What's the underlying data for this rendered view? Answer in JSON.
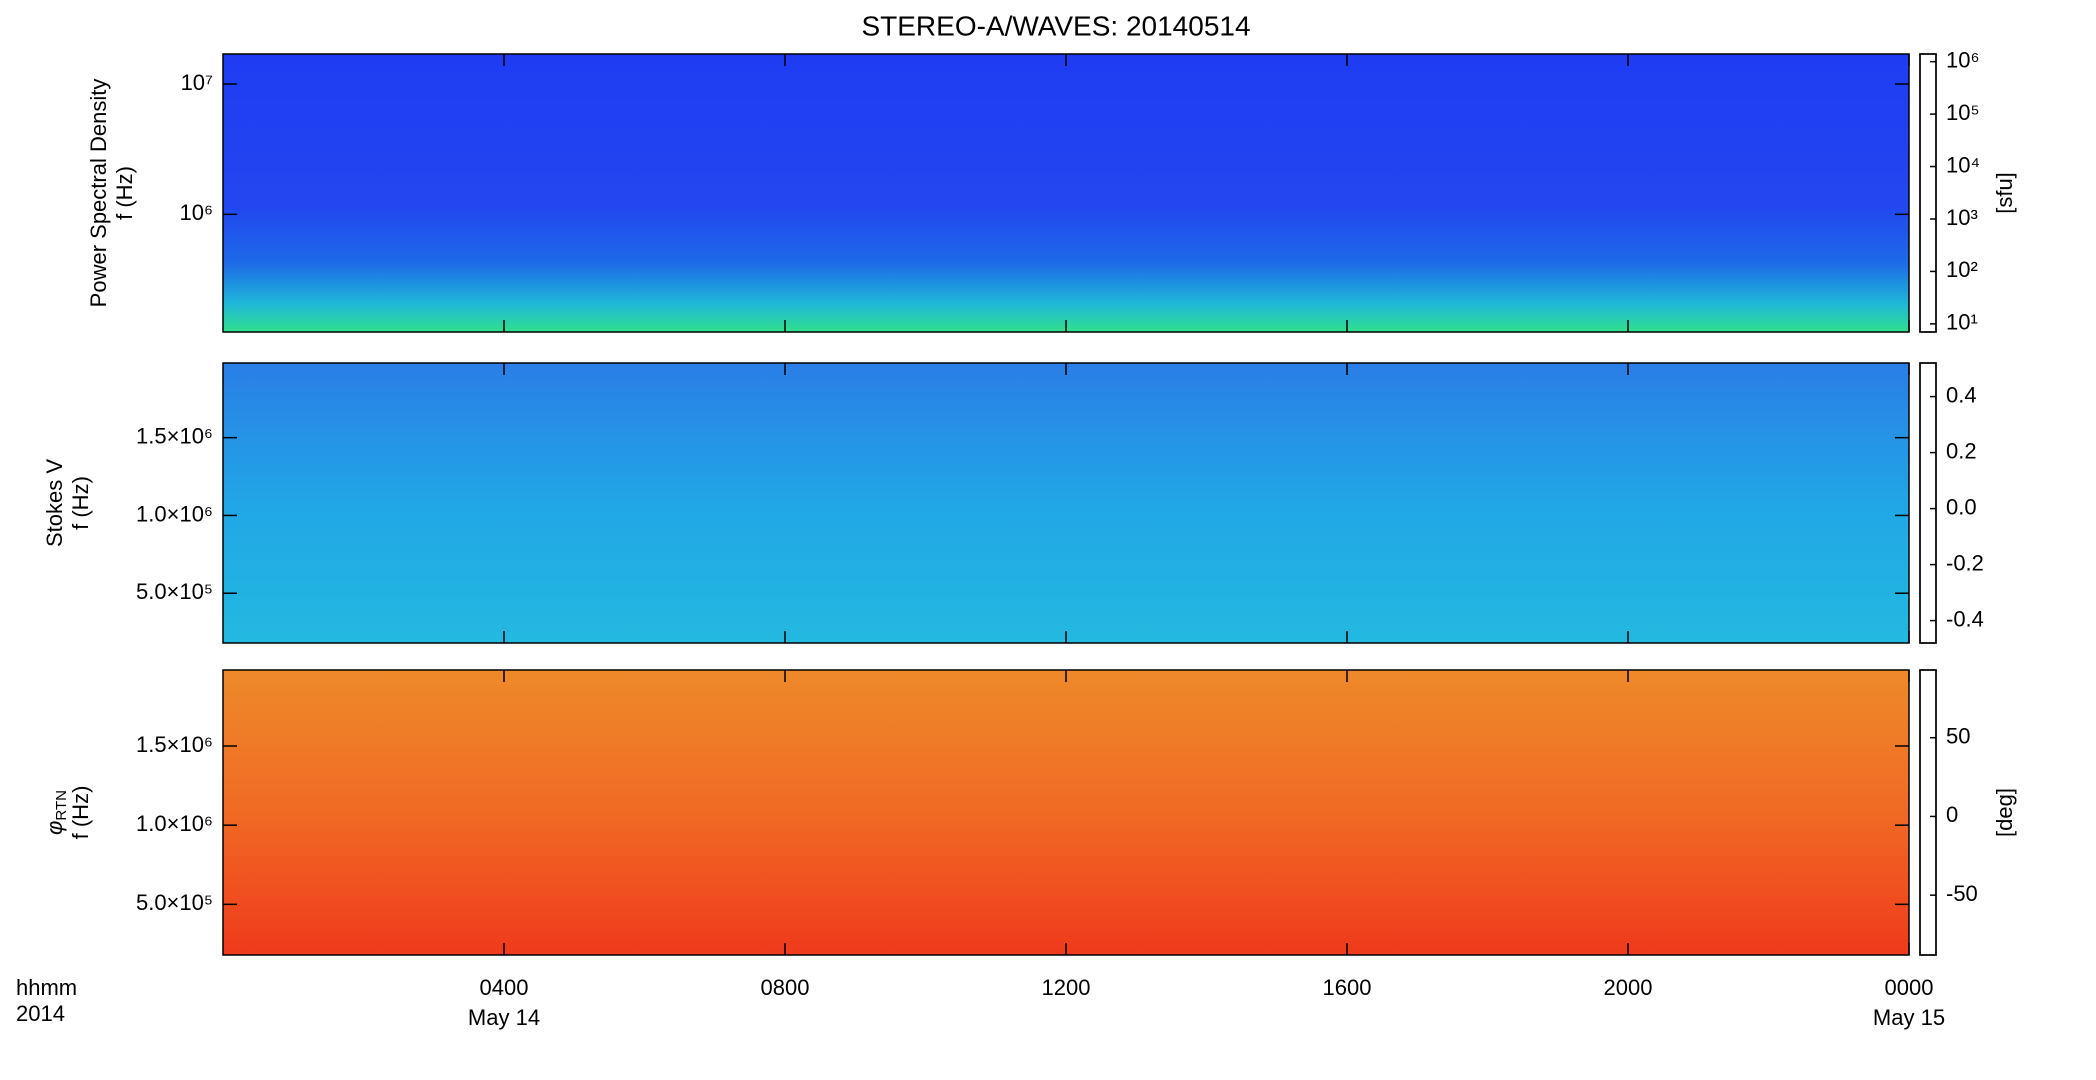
{
  "chart_data": [
    {
      "type": "heatmap",
      "title": "STEREO-A/WAVES: 20140514",
      "ylabel": [
        "Power Spectral Density",
        "f (Hz)"
      ],
      "ylog": true,
      "ylim": [
        125000,
        17000000
      ],
      "yticks": [
        {
          "value": 1000000,
          "label": "10⁶"
        },
        {
          "value": 10000000,
          "label": "10⁷"
        }
      ],
      "clog": true,
      "clim": [
        7,
        1400000
      ],
      "cticks": [
        {
          "value": 10,
          "label": "10¹"
        },
        {
          "value": 100,
          "label": "10²"
        },
        {
          "value": 1000,
          "label": "10³"
        },
        {
          "value": 10000,
          "label": "10⁴"
        },
        {
          "value": 100000,
          "label": "10⁵"
        },
        {
          "value": 1000000,
          "label": "10⁶"
        }
      ],
      "clabel": "[sfu]"
    },
    {
      "type": "heatmap",
      "ylabel": [
        "Stokes V",
        "f (Hz)"
      ],
      "ylog": false,
      "ylim": [
        180000,
        1980000
      ],
      "yticks": [
        {
          "value": 500000,
          "label": "5.0×10⁵"
        },
        {
          "value": 1000000,
          "label": "1.0×10⁶"
        },
        {
          "value": 1500000,
          "label": "1.5×10⁶"
        }
      ],
      "clog": false,
      "clim": [
        -0.48,
        0.52
      ],
      "cticks": [
        {
          "value": -0.4,
          "label": "-0.4"
        },
        {
          "value": -0.2,
          "label": "-0.2"
        },
        {
          "value": 0,
          "label": "0.0"
        },
        {
          "value": 0.2,
          "label": "0.2"
        },
        {
          "value": 0.4,
          "label": "0.4"
        }
      ]
    },
    {
      "type": "heatmap",
      "ylabel_symbol": "φ",
      "ylabel_subscript": "RTN",
      "ylabel": [
        "f (Hz)"
      ],
      "ylog": false,
      "ylim": [
        180000,
        1980000
      ],
      "yticks": [
        {
          "value": 500000,
          "label": "5.0×10⁵"
        },
        {
          "value": 1000000,
          "label": "1.0×10⁶"
        },
        {
          "value": 1500000,
          "label": "1.5×10⁶"
        }
      ],
      "clog": false,
      "clim": [
        -88,
        93
      ],
      "cticks": [
        -50,
        0,
        50
      ],
      "clabel": "[deg]",
      "xlim": [
        0,
        24
      ],
      "xticks": [
        {
          "value": 4,
          "label": "0400"
        },
        {
          "value": 8,
          "label": "0800"
        },
        {
          "value": 12,
          "label": "1200"
        },
        {
          "value": 16,
          "label": "1600"
        },
        {
          "value": 20,
          "label": "2000"
        },
        {
          "value": 24,
          "label": "0000"
        }
      ],
      "x_dates": [
        {
          "value": 4,
          "label": "May 14"
        },
        {
          "value": 24,
          "label": "May 15"
        }
      ],
      "x_unit_label": "hhmm",
      "x_year": "2014"
    }
  ]
}
